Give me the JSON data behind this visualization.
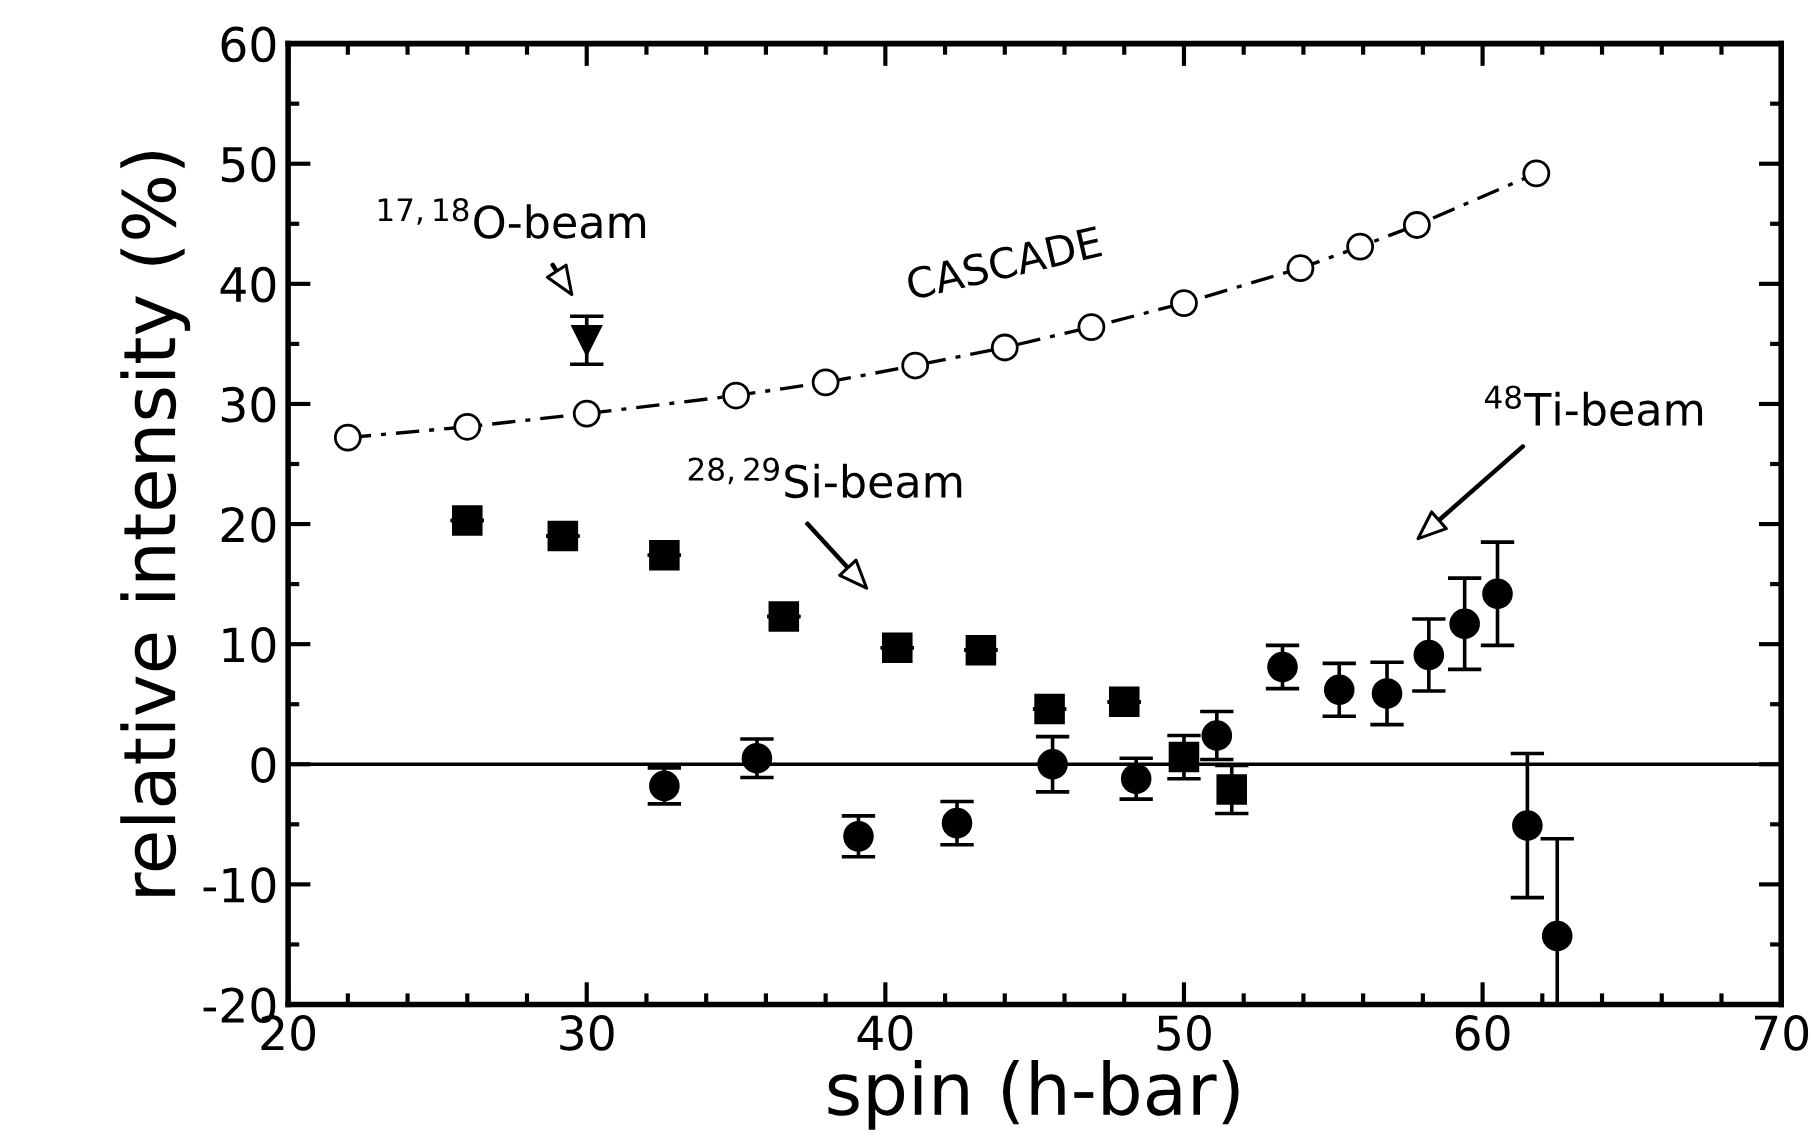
{
  "chart_data": {
    "type": "scatter",
    "xlabel": "spin (h-bar)",
    "ylabel": "relative intensity (%)",
    "xlim": [
      20,
      70
    ],
    "xticks": [
      20,
      30,
      40,
      50,
      60,
      70
    ],
    "ylim": [
      -20,
      60
    ],
    "yticks": [
      -20,
      -10,
      0,
      10,
      20,
      30,
      40,
      50,
      60
    ],
    "grid": false,
    "legend": false,
    "ref_lines": [
      {
        "axis": "y",
        "value": 0,
        "color": "#000000",
        "line_style": "solid"
      }
    ],
    "series": [
      {
        "name": "CASCADE",
        "type": "line",
        "marker": "circle",
        "line_style": "dashed",
        "color": "#000000",
        "x": [
          22.0,
          26.0,
          30.0,
          35.0,
          38.0,
          41.0,
          44.0,
          46.9,
          50.0,
          53.9,
          55.9,
          57.8,
          61.8
        ],
        "values": [
          27.2,
          28.1,
          29.2,
          30.7,
          31.8,
          33.2,
          34.7,
          36.4,
          38.4,
          41.3,
          43.1,
          44.9,
          49.2
        ]
      },
      {
        "marker": "triangle",
        "color": "#000000",
        "x": [
          30.0
        ],
        "values": [
          35.3
        ],
        "errors": [
          2.0
        ]
      },
      {
        "marker": "square",
        "color": "#000000",
        "x": [
          26.0,
          29.2,
          32.6,
          36.6,
          40.4,
          43.2,
          45.5,
          48.0,
          50.0,
          51.6
        ],
        "values": [
          20.3,
          19.0,
          17.4,
          12.3,
          9.7,
          9.5,
          4.6,
          5.2,
          0.6,
          -2.1
        ],
        "errors": [
          null,
          null,
          null,
          null,
          null,
          null,
          null,
          null,
          1.8,
          2.0
        ]
      },
      {
        "marker": "circle",
        "color": "#000000",
        "x": [
          32.6,
          35.7,
          39.1,
          42.4,
          45.6,
          48.4,
          51.1,
          53.3,
          55.2,
          56.8,
          58.2,
          59.4,
          60.5,
          61.5,
          62.5
        ],
        "values": [
          -1.8,
          0.5,
          -6.0,
          -4.9,
          0.0,
          -1.2,
          2.4,
          8.1,
          6.2,
          5.9,
          9.1,
          11.7,
          14.2,
          -5.1,
          -14.3
        ],
        "errors": [
          1.5,
          1.6,
          1.7,
          1.8,
          2.3,
          1.7,
          2.0,
          1.8,
          2.2,
          2.6,
          3.0,
          3.8,
          4.3,
          6.0,
          [
            -20,
            -6.2
          ]
        ]
      }
    ],
    "annotations": [
      "$^{17,18}$O-beam",
      "$^{28,29}$Si-beam",
      "$^{48}$Ti-beam"
    ]
  }
}
